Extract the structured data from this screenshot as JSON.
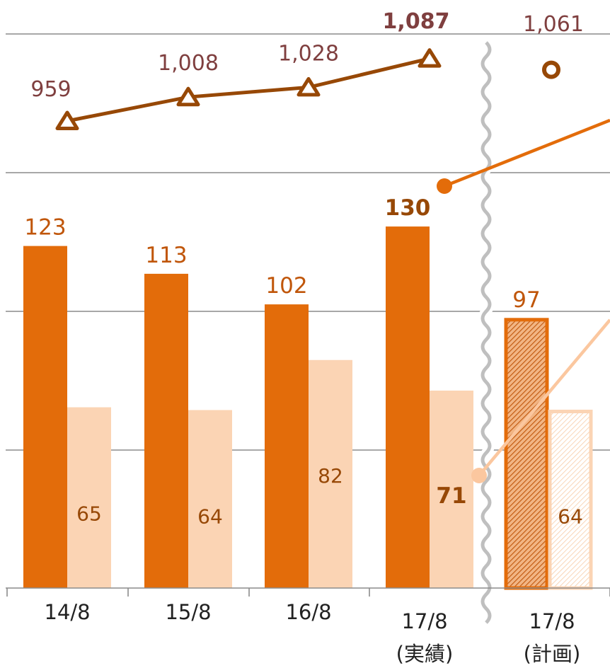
{
  "chart_data": {
    "type": "bar",
    "categories": [
      "14/8",
      "15/8",
      "16/8",
      "17/8",
      "17/8"
    ],
    "category_notes": [
      "",
      "",
      "",
      "(実績)",
      "(計画)"
    ],
    "series": [
      {
        "values": [
          123,
          113,
          102,
          130,
          97
        ],
        "labels": [
          "123",
          "113",
          "102",
          "130",
          "97"
        ],
        "type": "bar",
        "color": "#E36C0A"
      },
      {
        "values": [
          65,
          64,
          82,
          71,
          64
        ],
        "labels": [
          "65",
          "64",
          "82",
          "71",
          "64"
        ],
        "type": "bar",
        "color": "#FBD4B4"
      },
      {
        "values": [
          959,
          1008,
          1028,
          1087,
          1061
        ],
        "labels": [
          "959",
          "1,008",
          "1,028",
          "1,087",
          "1,061"
        ],
        "type": "line",
        "color": "#974806"
      }
    ],
    "plan_category_index": 4,
    "axis_break_between": [
      3,
      4
    ],
    "bar_ylim": [
      0,
      200
    ],
    "grid": true,
    "line_band_range": [
      880,
      1100
    ]
  }
}
